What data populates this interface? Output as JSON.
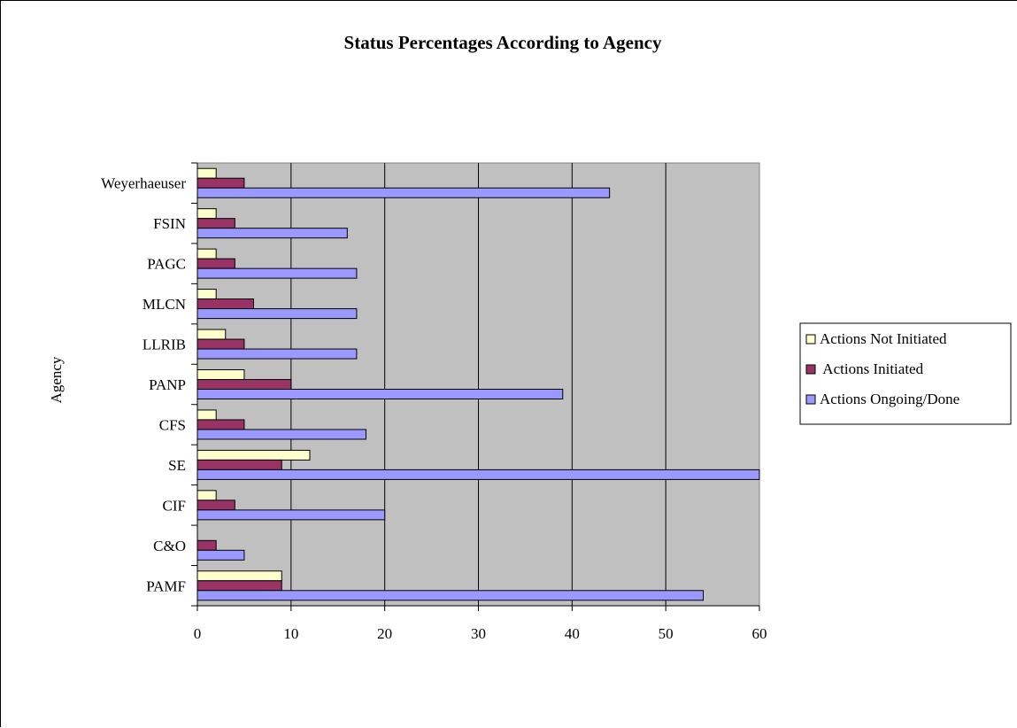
{
  "colors": {
    "plot_background": "#c0c0c0",
    "series": [
      "#ffffcc",
      "#993366",
      "#9999ff"
    ]
  },
  "chart_data": {
    "type": "bar",
    "orientation": "horizontal",
    "title": "Status Percentages According to Agency",
    "xlabel": "",
    "ylabel": "Agency",
    "xlim": [
      0,
      60
    ],
    "xticks": [
      0,
      10,
      20,
      30,
      40,
      50,
      60
    ],
    "grid": true,
    "legend_position": "right",
    "categories": [
      "PAMF",
      "C&O",
      "CIF",
      "SE",
      "CFS",
      "PANP",
      "LLRIB",
      "MLCN",
      "PAGC",
      "FSIN",
      "Weyerhaeuser"
    ],
    "series": [
      {
        "name": "Actions Not Initiated",
        "values": [
          9,
          0,
          2,
          12,
          2,
          5,
          3,
          2,
          2,
          2,
          2
        ]
      },
      {
        "name": " Actions Initiated",
        "values": [
          9,
          2,
          4,
          9,
          5,
          10,
          5,
          6,
          4,
          4,
          5
        ]
      },
      {
        "name": "Actions Ongoing/Done",
        "values": [
          54,
          5,
          20,
          60,
          18,
          39,
          17,
          17,
          17,
          16,
          44
        ]
      }
    ]
  }
}
